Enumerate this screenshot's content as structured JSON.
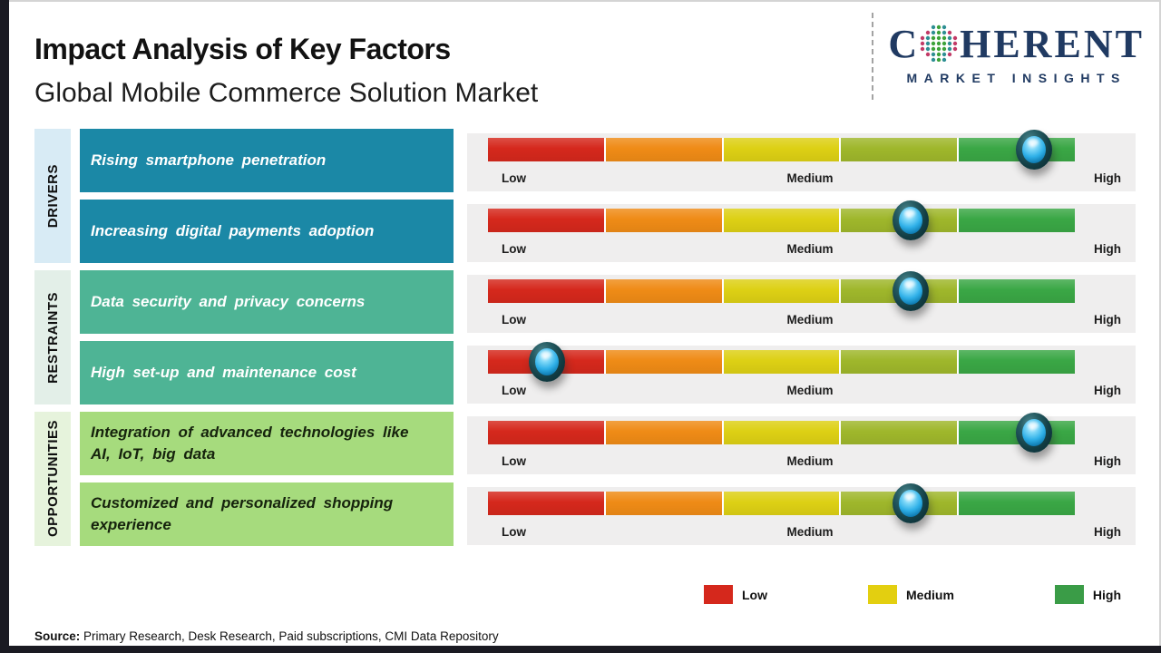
{
  "title": "Impact Analysis of Key Factors",
  "subtitle": "Global Mobile Commerce Solution Market",
  "logo": {
    "brand_start": "C",
    "brand_end": "HERENT",
    "tagline": "MARKET INSIGHTS"
  },
  "scale": {
    "low": "Low",
    "medium": "Medium",
    "high": "High"
  },
  "groups": [
    {
      "label": "DRIVERS",
      "factors": [
        {
          "text": "Rising smartphone penetration",
          "impact_percent": 93
        },
        {
          "text": "Increasing digital payments adoption",
          "impact_percent": 72
        }
      ]
    },
    {
      "label": "RESTRAINTS",
      "factors": [
        {
          "text": "Data security and privacy concerns",
          "impact_percent": 72
        },
        {
          "text": "High set-up and maintenance cost",
          "impact_percent": 10
        }
      ]
    },
    {
      "label": "OPPORTUNITIES",
      "factors": [
        {
          "text": "Integration of advanced technologies like AI, IoT, big data",
          "impact_percent": 93
        },
        {
          "text": "Customized and personalized shopping experience",
          "impact_percent": 72
        }
      ]
    }
  ],
  "legend": [
    {
      "label": "Low",
      "color": "#d5281c"
    },
    {
      "label": "Medium",
      "color": "#e3cf10"
    },
    {
      "label": "High",
      "color": "#3a9c47"
    }
  ],
  "source": {
    "prefix": "Source:",
    "text": " Primary Research, Desk Research, Paid subscriptions, CMI Data Repository"
  },
  "colors": {
    "driver_box": "#1b88a6",
    "driver_strip": "#d8ebf5",
    "restraint_box": "#4eb495",
    "restraint_strip": "#e3efe8",
    "opportunity_box": "#a6db7d",
    "opportunity_strip": "#e6f3dc",
    "bar_segments": [
      "#d5281c",
      "#ef8b16",
      "#ddd014",
      "#9fb72b",
      "#3aa745"
    ],
    "bar_panel_background": "#efeeee",
    "frame": "#1a1a22",
    "logo_navy": "#203a62"
  }
}
